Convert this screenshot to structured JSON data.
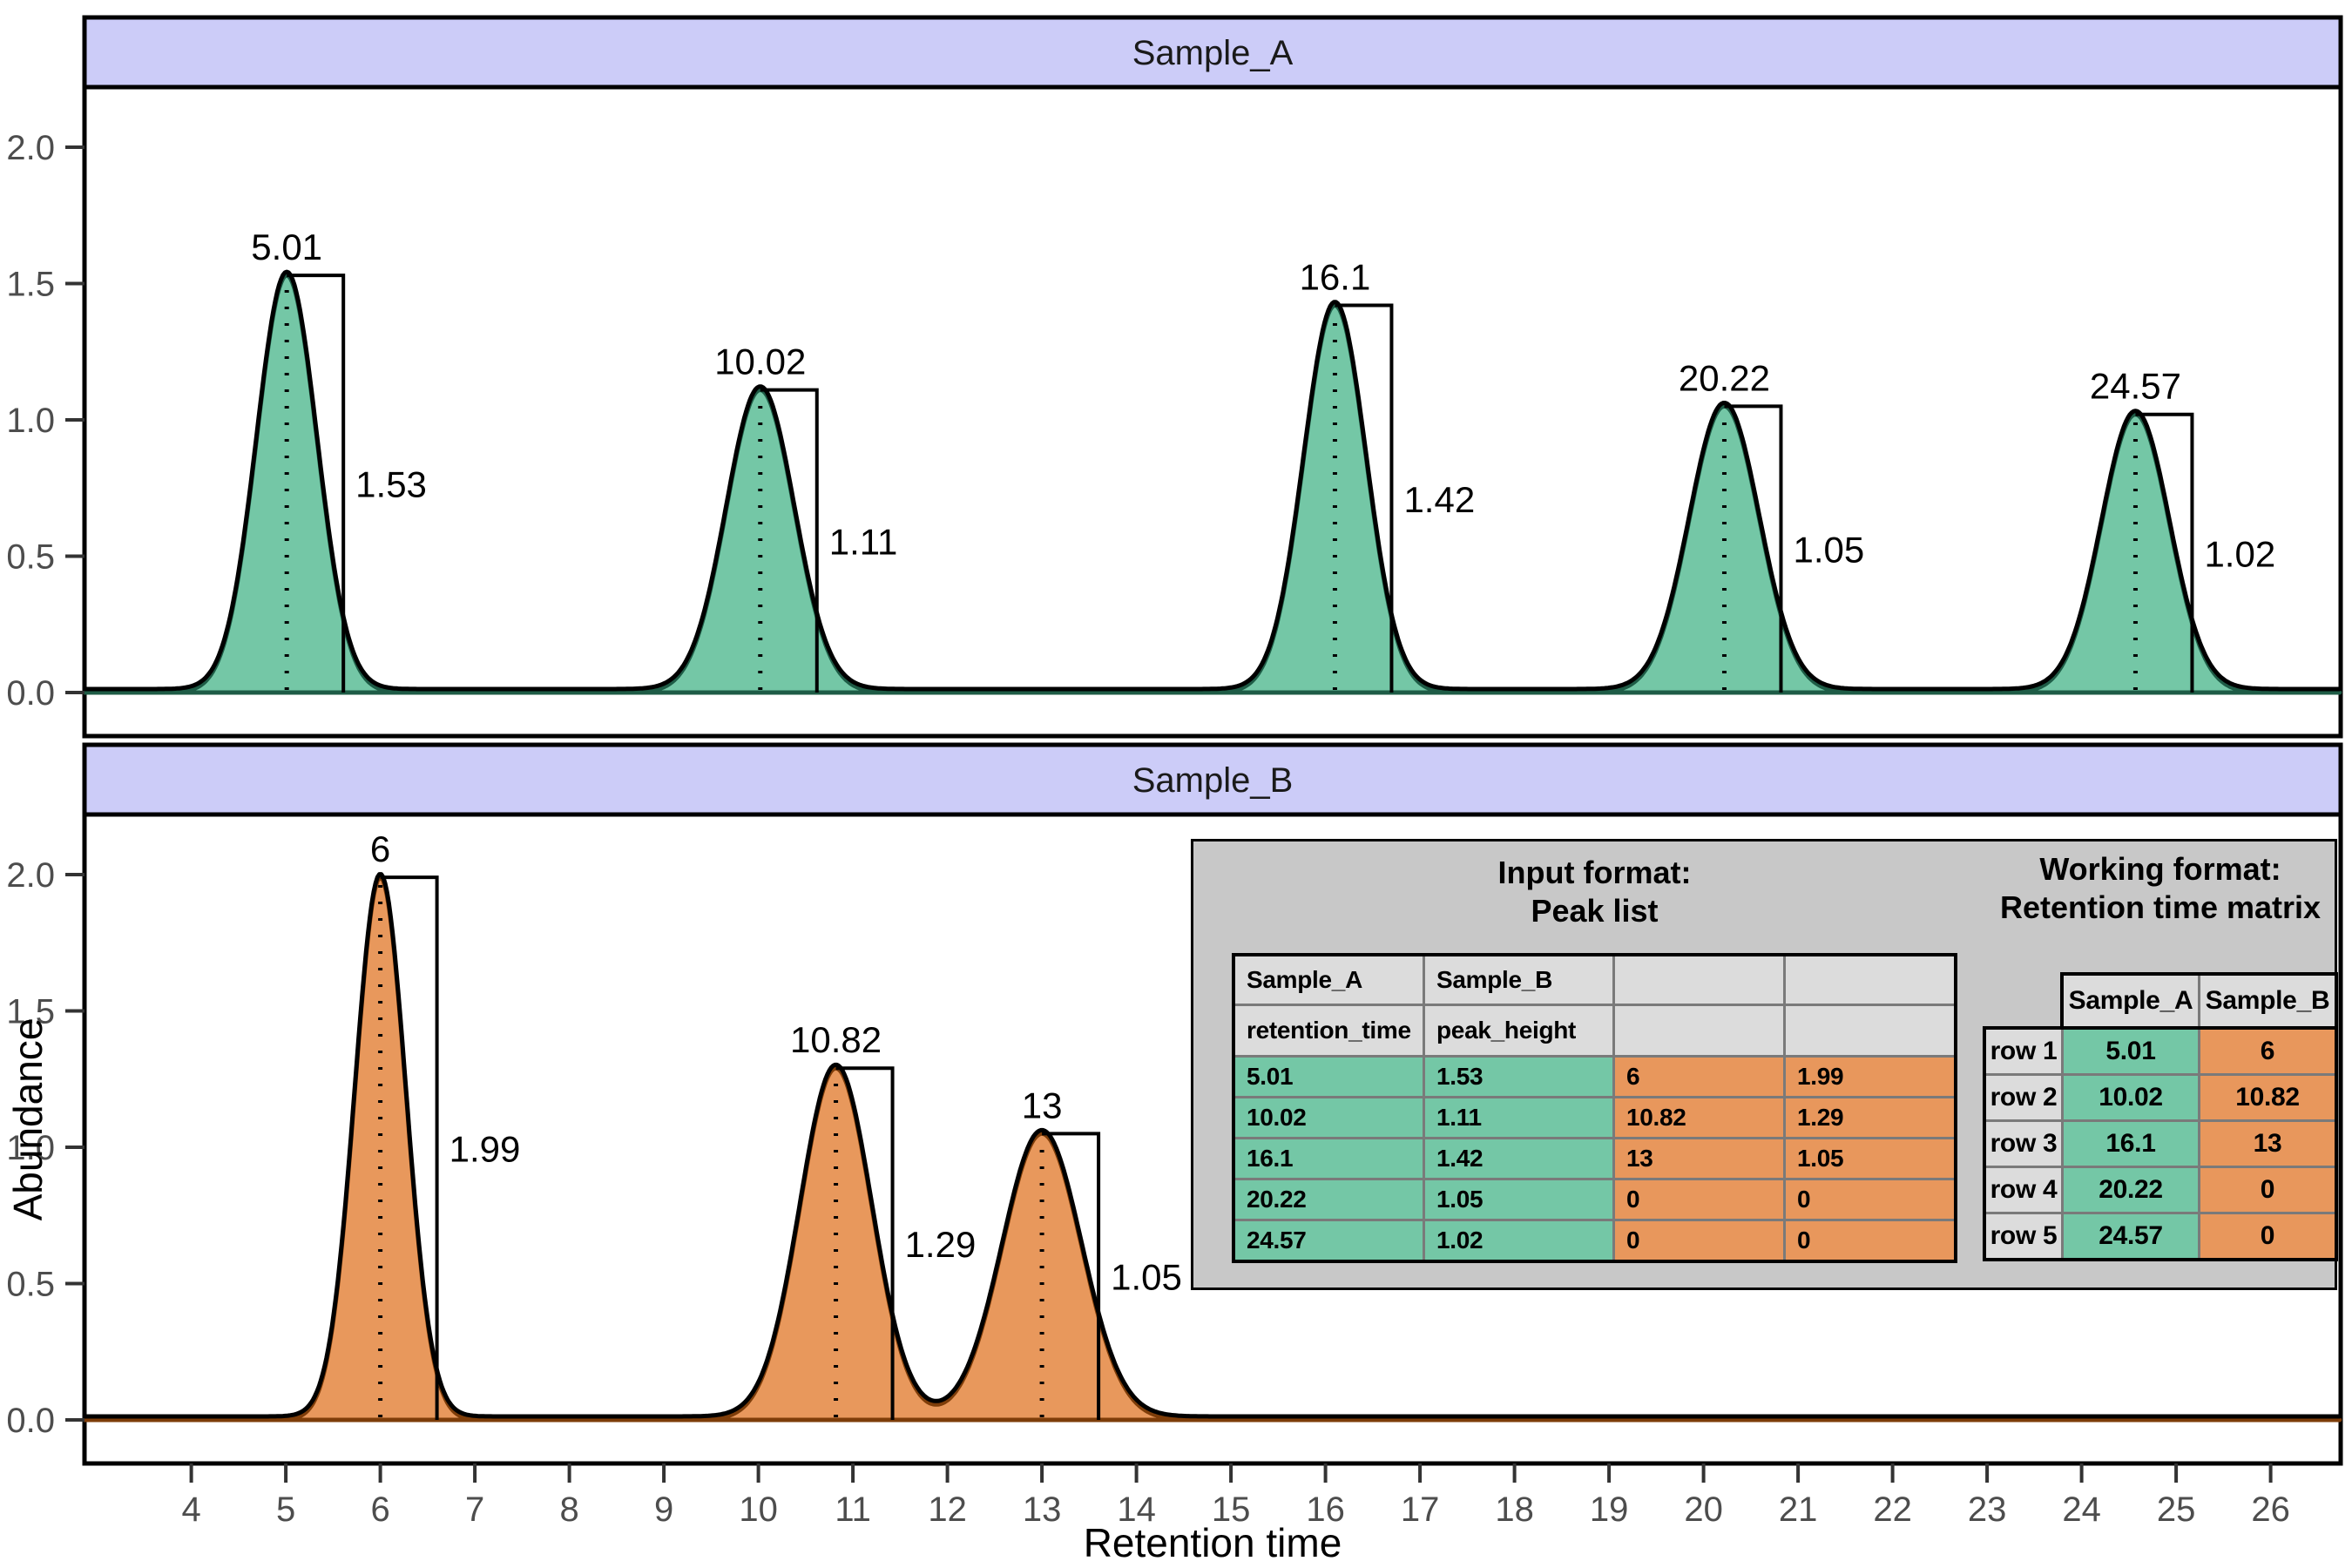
{
  "axes": {
    "x": {
      "label": "Retention time",
      "lim": [
        2.87,
        26.74
      ],
      "ticks": [
        4,
        5,
        6,
        7,
        8,
        9,
        10,
        11,
        12,
        13,
        14,
        15,
        16,
        17,
        18,
        19,
        20,
        21,
        22,
        23,
        24,
        25,
        26
      ],
      "tick_label_color": "#4D4D4D",
      "title_color": "#000000"
    },
    "y": {
      "label": "Abundance",
      "lim": [
        -0.16,
        2.22
      ],
      "tick_labels": [
        "0.0",
        "0.5",
        "1.0",
        "1.5",
        "2.0"
      ],
      "tick_values": [
        0,
        0.5,
        1.0,
        1.5,
        2.0
      ]
    }
  },
  "strip": {
    "fill": "#CCCCF8",
    "border_color": "#000000",
    "text_color": "#1a1a1a"
  },
  "grid": "off",
  "chart_data": [
    {
      "type": "area",
      "facet_label": "Sample_A",
      "fill_color": "#74C7A6",
      "edge_color": "#1E5C46",
      "line_color": "#000000",
      "peaks": [
        {
          "rt": 5.01,
          "height": 1.53,
          "sigma": 0.32,
          "rt_label": "5.01",
          "height_label": "1.53"
        },
        {
          "rt": 10.02,
          "height": 1.11,
          "sigma": 0.36,
          "rt_label": "10.02",
          "height_label": "1.11"
        },
        {
          "rt": 16.1,
          "height": 1.42,
          "sigma": 0.33,
          "rt_label": "16.1",
          "height_label": "1.42"
        },
        {
          "rt": 20.22,
          "height": 1.05,
          "sigma": 0.37,
          "rt_label": "20.22",
          "height_label": "1.05"
        },
        {
          "rt": 24.57,
          "height": 1.02,
          "sigma": 0.36,
          "rt_label": "24.57",
          "height_label": "1.02"
        }
      ]
    },
    {
      "type": "area",
      "facet_label": "Sample_B",
      "fill_color": "#E8985C",
      "edge_color": "#7E3D09",
      "line_color": "#000000",
      "peaks": [
        {
          "rt": 6,
          "height": 1.99,
          "sigma": 0.27,
          "rt_label": "6",
          "height_label": "1.99"
        },
        {
          "rt": 10.82,
          "height": 1.29,
          "sigma": 0.38,
          "rt_label": "10.82",
          "height_label": "1.29"
        },
        {
          "rt": 13,
          "height": 1.05,
          "sigma": 0.42,
          "rt_label": "13",
          "height_label": "1.05"
        }
      ]
    }
  ],
  "info_box": {
    "background": "#C8C8C8",
    "line_color": "#7a7a7a",
    "header_cell_color": "#DCDCDC",
    "sample_a_cell_color": "#74C7A6",
    "sample_b_cell_color": "#E8975C",
    "peak_list": {
      "title_line1": "Input format:",
      "title_line2": "Peak list",
      "header_rows": [
        [
          "Sample_A",
          "Sample_B",
          "",
          ""
        ],
        [
          "retention_time",
          "peak_height",
          "",
          ""
        ]
      ],
      "rows": [
        [
          "5.01",
          "1.53",
          "6",
          "1.99"
        ],
        [
          "10.02",
          "1.11",
          "10.82",
          "1.29"
        ],
        [
          "16.1",
          "1.42",
          "13",
          "1.05"
        ],
        [
          "20.22",
          "1.05",
          "0",
          "0"
        ],
        [
          "24.57",
          "1.02",
          "0",
          "0"
        ]
      ]
    },
    "rt_matrix": {
      "title_line1": "Working format:",
      "title_line2": "Retention time matrix",
      "col_headers": [
        "Sample_A",
        "Sample_B"
      ],
      "row_headers": [
        "row 1",
        "row 2",
        "row 3",
        "row 4",
        "row 5"
      ],
      "rows": [
        [
          "5.01",
          "6"
        ],
        [
          "10.02",
          "10.82"
        ],
        [
          "16.1",
          "13"
        ],
        [
          "20.22",
          "0"
        ],
        [
          "24.57",
          "0"
        ]
      ]
    }
  }
}
